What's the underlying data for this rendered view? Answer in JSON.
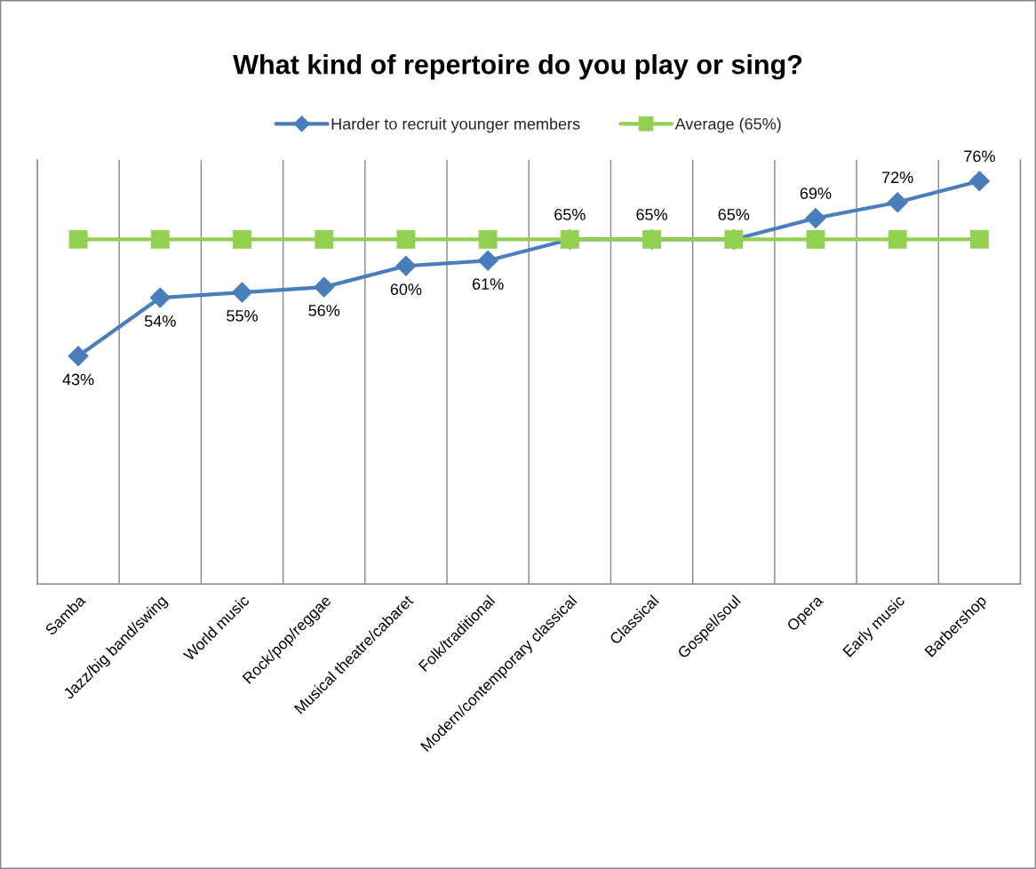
{
  "chart_data": {
    "type": "line",
    "title": "What kind of repertoire do you play or sing?",
    "categories": [
      "Samba",
      "Jazz/big band/swing",
      "World music",
      "Rock/pop/reggae",
      "Musical theatre/cabaret",
      "Folk/traditional",
      "Modern/contemporary classical",
      "Classical",
      "Gospel/soul",
      "Opera",
      "Early music",
      "Barbershop"
    ],
    "series": [
      {
        "name": "Harder to recruit younger members",
        "color": "#4a7ebb",
        "marker": "diamond",
        "values": [
          43,
          54,
          55,
          56,
          60,
          61,
          65,
          65,
          65,
          69,
          72,
          76
        ],
        "value_labels": [
          "43%",
          "54%",
          "55%",
          "56%",
          "60%",
          "61%",
          "65%",
          "65%",
          "65%",
          "69%",
          "72%",
          "76%"
        ]
      },
      {
        "name": "Average (65%)",
        "color": "#92d050",
        "marker": "square",
        "values": [
          65,
          65,
          65,
          65,
          65,
          65,
          65,
          65,
          65,
          65,
          65,
          65
        ]
      }
    ],
    "ylim": [
      0,
      80
    ],
    "tick_labels": "x",
    "grid": "x",
    "legend": "top"
  }
}
